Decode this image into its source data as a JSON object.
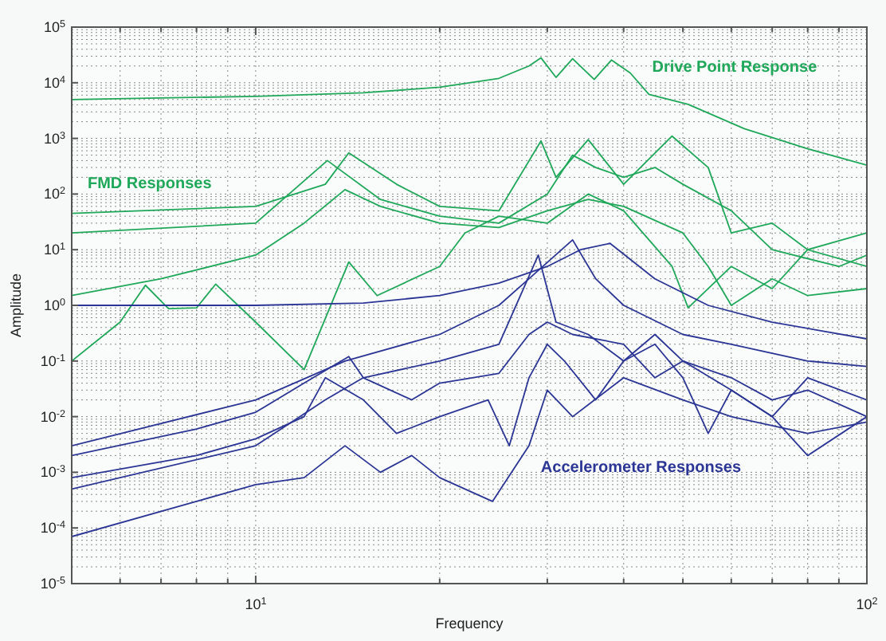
{
  "chart_data": {
    "type": "line",
    "xlabel": "Frequency",
    "ylabel": "Amplitude",
    "log": "xy",
    "grid": true,
    "marker": "none",
    "line_style": "solid",
    "xlim": [
      5,
      100
    ],
    "ylim": [
      1e-05,
      100000
    ],
    "xticks": [
      {
        "value": 6,
        "label": null
      },
      {
        "value": 7,
        "label": null
      },
      {
        "value": 8,
        "label": null
      },
      {
        "value": 9,
        "label": null
      },
      {
        "value": 10,
        "label": "10$^{1}$"
      },
      {
        "value": 20,
        "label": null
      },
      {
        "value": 30,
        "label": null
      },
      {
        "value": 40,
        "label": null
      },
      {
        "value": 50,
        "label": null
      },
      {
        "value": 60,
        "label": null
      },
      {
        "value": 70,
        "label": null
      },
      {
        "value": 80,
        "label": null
      },
      {
        "value": 90,
        "label": null
      },
      {
        "value": 100,
        "label": "10$^{2}$"
      }
    ],
    "yticks": [
      {
        "value": 1e-05,
        "label": "10$^{-5}$"
      },
      {
        "value": 0.0001,
        "label": "10$^{-4}$"
      },
      {
        "value": 0.001,
        "label": "10$^{-3}$"
      },
      {
        "value": 0.01,
        "label": "10$^{-2}$"
      },
      {
        "value": 0.1,
        "label": "10$^{-1}$"
      },
      {
        "value": 1,
        "label": "10$^{0}$"
      },
      {
        "value": 10,
        "label": "10$^{1}$"
      },
      {
        "value": 100,
        "label": "10$^{2}$"
      },
      {
        "value": 1000,
        "label": "10$^{3}$"
      },
      {
        "value": 10000,
        "label": "10$^{4}$"
      },
      {
        "value": 100000,
        "label": "10$^{5}$"
      }
    ],
    "annotations": [
      "Drive Point Response",
      "FMD Responses",
      "Accelerometer Responses"
    ],
    "series": [
      {
        "color": "#1fa85a",
        "x": [
          5,
          10,
          15,
          20,
          25,
          28,
          29.3,
          31,
          33,
          35.8,
          38.2,
          41,
          44,
          51,
          63,
          80,
          100
        ],
        "values": [
          5000,
          5700,
          6600,
          8300,
          12000,
          20000,
          28000,
          12500,
          27000,
          11500,
          25600,
          15000,
          6200,
          4100,
          1500,
          650,
          330
        ]
      },
      {
        "color": "#1fa85a",
        "x": [
          5,
          10,
          13,
          14.2,
          17,
          20,
          25,
          29.3,
          31,
          35,
          40,
          48,
          55,
          60,
          70,
          80,
          100
        ],
        "values": [
          45,
          60,
          150,
          550,
          150,
          60,
          50,
          900,
          200,
          950,
          150,
          1100,
          300,
          20,
          30,
          10,
          20
        ]
      },
      {
        "color": "#1fa85a",
        "x": [
          5,
          10,
          13.1,
          16,
          20,
          25,
          30,
          33,
          36,
          40,
          45,
          50,
          60,
          70,
          90,
          100
        ],
        "values": [
          20,
          30,
          400,
          80,
          40,
          30,
          100,
          500,
          300,
          200,
          300,
          150,
          50,
          10,
          5,
          8
        ]
      },
      {
        "color": "#1fa85a",
        "x": [
          5,
          7,
          10,
          12,
          14,
          16,
          20,
          25,
          30,
          35,
          40,
          50,
          55,
          60,
          70,
          80,
          100
        ],
        "values": [
          1.5,
          3,
          8,
          30,
          120,
          60,
          30,
          25,
          50,
          80,
          60,
          20,
          5,
          1,
          3,
          1.5,
          2
        ]
      },
      {
        "color": "#1fa85a",
        "x": [
          5,
          6,
          6.6,
          7.2,
          8,
          8.6,
          10,
          12,
          14.2,
          15.8,
          20,
          22,
          25,
          30,
          35,
          40,
          48,
          51,
          60,
          70,
          80,
          100
        ],
        "values": [
          0.1,
          0.5,
          2.3,
          0.87,
          0.9,
          2.4,
          0.5,
          0.07,
          6,
          1.5,
          5,
          20,
          40,
          30,
          100,
          50,
          5,
          0.9,
          5,
          2,
          10,
          5
        ]
      },
      {
        "color": "#2b3595",
        "x": [
          5,
          10,
          15,
          20,
          25,
          30,
          34,
          38,
          45,
          55,
          70,
          100
        ],
        "values": [
          1,
          1,
          1.1,
          1.5,
          2.5,
          5,
          10,
          13,
          3,
          1,
          0.5,
          0.25
        ]
      },
      {
        "color": "#2b3595",
        "x": [
          5,
          8,
          10,
          12,
          14.2,
          15,
          18,
          20,
          25,
          28,
          30,
          33,
          40,
          45,
          50,
          60,
          70,
          80,
          100
        ],
        "values": [
          0.002,
          0.006,
          0.012,
          0.04,
          0.12,
          0.05,
          0.02,
          0.04,
          0.06,
          0.3,
          0.5,
          0.3,
          0.2,
          0.05,
          0.1,
          0.05,
          0.02,
          0.03,
          0.01
        ]
      },
      {
        "color": "#2b3595",
        "x": [
          5,
          8,
          10,
          12,
          13,
          15,
          17,
          20,
          24,
          26,
          28,
          30,
          32,
          36,
          40,
          45,
          50,
          55,
          60,
          70,
          80,
          100
        ],
        "values": [
          0.0008,
          0.002,
          0.004,
          0.01,
          0.05,
          0.02,
          0.005,
          0.01,
          0.02,
          0.003,
          0.05,
          0.2,
          0.1,
          0.02,
          0.1,
          0.2,
          0.05,
          0.005,
          0.03,
          0.01,
          0.002,
          0.01
        ]
      },
      {
        "color": "#2b3595",
        "x": [
          5,
          8,
          10,
          12,
          14,
          16,
          18,
          20,
          24.4,
          28,
          30,
          33,
          40,
          50,
          60,
          80,
          100
        ],
        "values": [
          7e-05,
          0.0003,
          0.0006,
          0.0008,
          0.003,
          0.001,
          0.002,
          0.0008,
          0.0003,
          0.003,
          0.03,
          0.01,
          0.05,
          0.02,
          0.01,
          0.005,
          0.008
        ]
      },
      {
        "color": "#2b3595",
        "x": [
          5,
          10,
          14,
          20,
          25,
          28,
          33,
          36,
          40,
          50,
          60,
          80,
          100
        ],
        "values": [
          0.003,
          0.02,
          0.1,
          0.3,
          1,
          3,
          15,
          3,
          1,
          0.3,
          0.2,
          0.1,
          0.08
        ]
      },
      {
        "color": "#2b3595",
        "x": [
          5,
          10,
          13,
          15,
          20,
          25,
          29,
          31,
          35,
          40,
          45,
          50,
          60,
          70,
          80,
          100
        ],
        "values": [
          0.0005,
          0.003,
          0.02,
          0.05,
          0.1,
          0.2,
          8,
          0.5,
          0.3,
          0.1,
          0.3,
          0.1,
          0.03,
          0.01,
          0.05,
          0.02
        ]
      }
    ]
  }
}
